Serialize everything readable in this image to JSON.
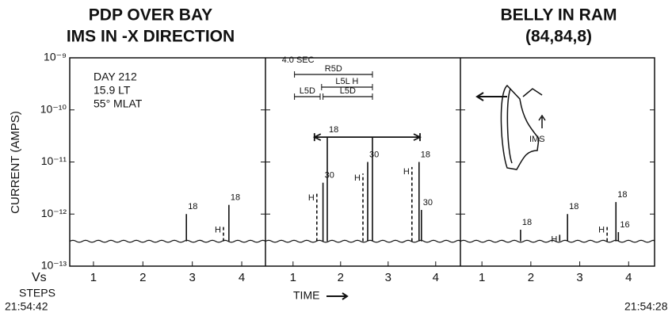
{
  "chart_data": [
    {
      "type": "stem",
      "title_lines": [
        "PDP OVER BAY",
        "IMS IN -X DIRECTION"
      ],
      "y_label": "CURRENT (AMPS)",
      "log_scale": true,
      "ylim": [
        1e-13,
        1e-09
      ],
      "yticks": [
        {
          "value": 1e-09,
          "label": "10⁻⁹"
        },
        {
          "value": 1e-10,
          "label": "10⁻¹⁰"
        },
        {
          "value": 1e-11,
          "label": "10⁻¹¹"
        },
        {
          "value": 1e-12,
          "label": "10⁻¹²"
        },
        {
          "value": 1e-13,
          "label": "10⁻¹³"
        }
      ],
      "xlim": [
        0.52,
        4.48
      ],
      "xticks": [
        1,
        2,
        3,
        4
      ],
      "annotations": [
        "DAY 212",
        "15.9 LT",
        "55° MLAT"
      ],
      "baseline": 3e-13,
      "x": [
        2.88,
        3.63,
        3.74
      ],
      "values": [
        1e-12,
        6e-13,
        1.5e-12
      ],
      "labels": [
        "18",
        "H",
        "18"
      ],
      "dashed": [
        false,
        true,
        false
      ]
    },
    {
      "type": "stem",
      "ylim": [
        1e-13,
        1e-09
      ],
      "xlim": [
        0.42,
        4.52
      ],
      "xticks": [
        1,
        2,
        3,
        4
      ],
      "baseline": 3e-13,
      "intervals": [
        {
          "label": "4.0 SEC",
          "x": [
            1.03,
            2.67
          ]
        },
        {
          "label": "R5D",
          "x": [
            1.03,
            2.67
          ]
        },
        {
          "label": "L5L H",
          "x": [
            1.6,
            2.67
          ]
        },
        {
          "label": "L5D",
          "x": [
            1.03,
            1.57
          ]
        },
        {
          "label": "L5D",
          "x": [
            1.63,
            2.67
          ]
        }
      ],
      "arrow": {
        "x": [
          1.45,
          3.67
        ],
        "value": 3e-11
      },
      "x": [
        1.5,
        1.63,
        1.72,
        2.47,
        2.57,
        2.67,
        3.5,
        3.65,
        3.7
      ],
      "values": [
        2.5e-12,
        4e-12,
        3e-11,
        6e-12,
        1e-11,
        3e-11,
        8e-12,
        1e-11,
        1.2e-12
      ],
      "labels": [
        "H",
        "30",
        "18",
        "H",
        "30",
        null,
        "H",
        "18",
        "30"
      ],
      "dashed": [
        true,
        false,
        false,
        true,
        false,
        false,
        true,
        false,
        false
      ]
    },
    {
      "type": "stem",
      "title_lines": [
        "BELLY IN RAM",
        "(84,84,8)"
      ],
      "inset_label": "IMS",
      "ylim": [
        1e-13,
        1e-09
      ],
      "xlim": [
        0.56,
        4.53
      ],
      "xticks": [
        1,
        2,
        3,
        4
      ],
      "baseline": 3e-13,
      "x": [
        1.79,
        2.59,
        2.75,
        3.56,
        3.74,
        3.79
      ],
      "values": [
        5e-13,
        4e-13,
        1e-12,
        6e-13,
        1.7e-12,
        4.5e-13
      ],
      "labels": [
        "18",
        "H",
        "18",
        "H",
        "18",
        "16"
      ],
      "dashed": [
        false,
        false,
        false,
        true,
        false,
        false
      ]
    }
  ],
  "footer": {
    "x_prefix": "Vs",
    "x_name": "STEPS",
    "start_time": "21:54:42",
    "time_label": "TIME",
    "end_time": "21:54:28"
  }
}
